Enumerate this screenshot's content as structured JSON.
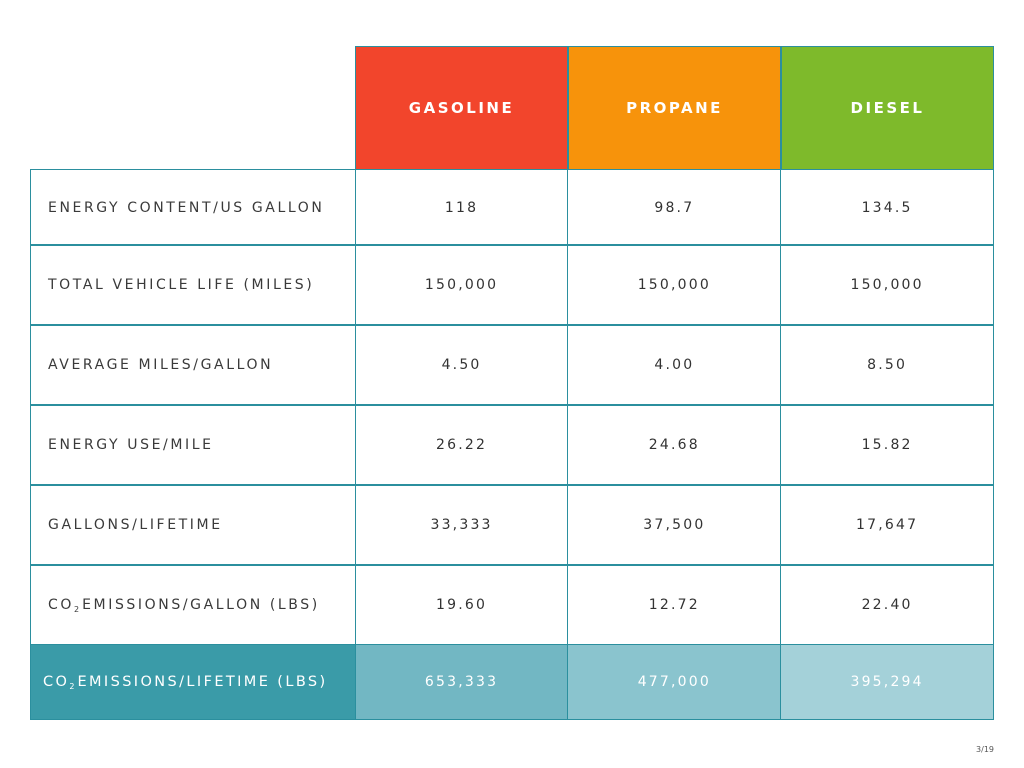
{
  "table": {
    "headers": [
      "GASOLINE",
      "PROPANE",
      "DIESEL"
    ],
    "header_colors": [
      "#f2452c",
      "#f7930b",
      "#7eba2b"
    ],
    "rows": [
      {
        "label": "ENERGY CONTENT/US GALLON",
        "values": [
          "118",
          "98.7",
          "134.5"
        ]
      },
      {
        "label": "TOTAL VEHICLE LIFE (MILES)",
        "values": [
          "150,000",
          "150,000",
          "150,000"
        ]
      },
      {
        "label": "AVERAGE MILES/GALLON",
        "values": [
          "4.50",
          "4.00",
          "8.50"
        ]
      },
      {
        "label": "ENERGY USE/MILE",
        "values": [
          "26.22",
          "24.68",
          "15.82"
        ]
      },
      {
        "label": "GALLONS/LIFETIME",
        "values": [
          "33,333",
          "37,500",
          "17,647"
        ]
      },
      {
        "label_prefix": "CO",
        "label_sub": "2",
        "label": " EMISSIONS/GALLON (LBS)",
        "values": [
          "19.60",
          "12.72",
          "22.40"
        ]
      }
    ],
    "footer": {
      "label_prefix": "CO",
      "label_sub": "2",
      "label": " EMISSIONS/LIFETIME (LBS)",
      "values": [
        "653,333",
        "477,000",
        "395,294"
      ]
    }
  },
  "page_number": "3/19"
}
